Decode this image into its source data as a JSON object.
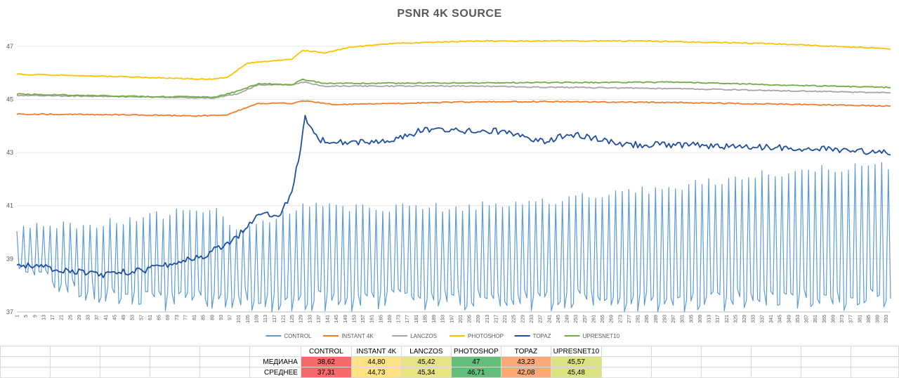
{
  "chart_data": {
    "type": "line",
    "title": "PSNR 4K SOURCE",
    "ylim": [
      37,
      48
    ],
    "yticks": [
      37,
      39,
      41,
      43,
      45,
      47
    ],
    "x_start": 1,
    "x_end": 395,
    "x_tick_step": 4,
    "legend_position": "bottom",
    "series": [
      {
        "name": "CONTROL",
        "color": "#5B9BD5",
        "mode": "oscillating",
        "period": 3,
        "hi": [
          [
            1,
            40.3
          ],
          [
            40,
            40.5
          ],
          [
            60,
            40.8
          ],
          [
            92,
            41.0
          ],
          [
            100,
            40.3
          ],
          [
            130,
            41.1
          ],
          [
            200,
            41.1
          ],
          [
            260,
            41.5
          ],
          [
            300,
            41.9
          ],
          [
            340,
            42.4
          ],
          [
            395,
            42.7
          ]
        ],
        "lo": [
          [
            1,
            38.5
          ],
          [
            20,
            37.6
          ],
          [
            40,
            37.2
          ],
          [
            70,
            37.0
          ],
          [
            95,
            37.0
          ],
          [
            395,
            37.0
          ]
        ]
      },
      {
        "name": "INSTANT 4K",
        "color": "#ED7D31",
        "points": [
          [
            1,
            44.45
          ],
          [
            50,
            44.42
          ],
          [
            80,
            44.38
          ],
          [
            95,
            44.4
          ],
          [
            105,
            44.7
          ],
          [
            110,
            44.85
          ],
          [
            125,
            44.85
          ],
          [
            130,
            44.95
          ],
          [
            145,
            44.8
          ],
          [
            200,
            44.9
          ],
          [
            240,
            44.92
          ],
          [
            300,
            44.88
          ],
          [
            360,
            44.8
          ],
          [
            395,
            44.75
          ]
        ]
      },
      {
        "name": "LANCZOS",
        "color": "#A5A5A5",
        "points": [
          [
            1,
            45.15
          ],
          [
            50,
            45.1
          ],
          [
            90,
            45.05
          ],
          [
            100,
            45.2
          ],
          [
            110,
            45.55
          ],
          [
            125,
            45.55
          ],
          [
            130,
            45.65
          ],
          [
            140,
            45.5
          ],
          [
            200,
            45.5
          ],
          [
            300,
            45.4
          ],
          [
            395,
            45.25
          ]
        ]
      },
      {
        "name": "PHOTOSHOP",
        "color": "#FFC000",
        "points": [
          [
            1,
            45.95
          ],
          [
            50,
            45.85
          ],
          [
            90,
            45.75
          ],
          [
            96,
            45.85
          ],
          [
            105,
            46.35
          ],
          [
            115,
            46.45
          ],
          [
            125,
            46.5
          ],
          [
            130,
            46.85
          ],
          [
            140,
            46.75
          ],
          [
            150,
            46.95
          ],
          [
            170,
            47.1
          ],
          [
            210,
            47.2
          ],
          [
            280,
            47.2
          ],
          [
            340,
            47.1
          ],
          [
            395,
            46.9
          ]
        ]
      },
      {
        "name": "TOPAZ",
        "color": "#1F4E9C",
        "points": [
          [
            1,
            38.8
          ],
          [
            20,
            38.6
          ],
          [
            40,
            38.4
          ],
          [
            60,
            38.6
          ],
          [
            85,
            39.1
          ],
          [
            100,
            39.8
          ],
          [
            110,
            40.7
          ],
          [
            120,
            40.7
          ],
          [
            125,
            41.5
          ],
          [
            129,
            43.2
          ],
          [
            131,
            44.3
          ],
          [
            134,
            43.9
          ],
          [
            137,
            43.5
          ],
          [
            150,
            43.4
          ],
          [
            160,
            43.4
          ],
          [
            170,
            43.4
          ],
          [
            185,
            43.9
          ],
          [
            200,
            43.8
          ],
          [
            220,
            43.8
          ],
          [
            240,
            43.4
          ],
          [
            250,
            43.7
          ],
          [
            265,
            43.5
          ],
          [
            275,
            43.3
          ],
          [
            300,
            43.3
          ],
          [
            330,
            43.2
          ],
          [
            360,
            43.15
          ],
          [
            395,
            43.0
          ]
        ]
      },
      {
        "name": "UPRESNET10",
        "color": "#70AD47",
        "points": [
          [
            1,
            45.2
          ],
          [
            50,
            45.12
          ],
          [
            90,
            45.08
          ],
          [
            100,
            45.3
          ],
          [
            110,
            45.6
          ],
          [
            125,
            45.55
          ],
          [
            130,
            45.75
          ],
          [
            140,
            45.6
          ],
          [
            200,
            45.62
          ],
          [
            300,
            45.65
          ],
          [
            340,
            45.55
          ],
          [
            395,
            45.45
          ]
        ]
      }
    ]
  },
  "table": {
    "headers": [
      "CONTROL",
      "INSTANT 4K",
      "LANCZOS",
      "PHOTOSHOP",
      "TOPAZ",
      "UPRESNET10"
    ],
    "rows": [
      {
        "label": "МЕДИАНА",
        "values": [
          "38,62",
          "44,80",
          "45,42",
          "47",
          "43,23",
          "45,57"
        ],
        "colors": [
          "#F8696B",
          "#FFE283",
          "#E5E384",
          "#63BE7B",
          "#FBAA77",
          "#DCE182"
        ]
      },
      {
        "label": "СРЕДНЕЕ",
        "values": [
          "37,31",
          "44,73",
          "45,34",
          "46,71",
          "42,08",
          "45,48"
        ],
        "colors": [
          "#F8696B",
          "#FFE283",
          "#E5E384",
          "#63BE7B",
          "#FBAA77",
          "#DCE182"
        ]
      }
    ]
  }
}
